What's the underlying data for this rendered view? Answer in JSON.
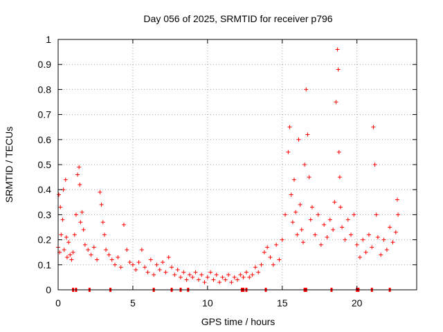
{
  "chart_data": {
    "type": "scatter",
    "title": "Day 056 of 2025, SRMTID for receiver p796",
    "xlabel": "GPS time / hours",
    "ylabel": "SRMTID / TECUs",
    "xlim": [
      0,
      24
    ],
    "ylim": [
      0,
      1
    ],
    "x_ticks": [
      0,
      5,
      10,
      15,
      20
    ],
    "x_tick_labels": [
      "0",
      "5",
      "10",
      "15",
      "20"
    ],
    "y_ticks": [
      0,
      0.1,
      0.2,
      0.3,
      0.4,
      0.5,
      0.6,
      0.7,
      0.8,
      0.9,
      1
    ],
    "y_tick_labels": [
      "0",
      "0.1",
      "0.2",
      "0.3",
      "0.4",
      "0.5",
      "0.6",
      "0.7",
      "0.8",
      "0.9",
      "1"
    ],
    "grid": true,
    "marker": "+",
    "color": "#ff0000",
    "series": [
      {
        "name": "SRMTID",
        "points": [
          [
            0.0,
            0.17
          ],
          [
            0.05,
            0.38
          ],
          [
            0.1,
            0.15
          ],
          [
            0.15,
            0.33
          ],
          [
            0.2,
            0.22
          ],
          [
            0.3,
            0.28
          ],
          [
            0.35,
            0.4
          ],
          [
            0.4,
            0.16
          ],
          [
            0.5,
            0.44
          ],
          [
            0.55,
            0.21
          ],
          [
            0.6,
            0.13
          ],
          [
            0.7,
            0.19
          ],
          [
            0.8,
            0.14
          ],
          [
            0.9,
            0.12
          ],
          [
            1.0,
            0.15
          ],
          [
            1.1,
            0.22
          ],
          [
            1.2,
            0.3
          ],
          [
            1.3,
            0.46
          ],
          [
            1.4,
            0.49
          ],
          [
            1.45,
            0.42
          ],
          [
            1.5,
            0.27
          ],
          [
            1.6,
            0.31
          ],
          [
            1.7,
            0.24
          ],
          [
            1.8,
            0.18
          ],
          [
            2.0,
            0.16
          ],
          [
            2.2,
            0.14
          ],
          [
            2.4,
            0.17
          ],
          [
            2.6,
            0.12
          ],
          [
            2.8,
            0.39
          ],
          [
            2.9,
            0.34
          ],
          [
            3.0,
            0.27
          ],
          [
            3.1,
            0.22
          ],
          [
            3.2,
            0.16
          ],
          [
            3.4,
            0.14
          ],
          [
            3.6,
            0.12
          ],
          [
            3.8,
            0.1
          ],
          [
            4.0,
            0.13
          ],
          [
            4.2,
            0.09
          ],
          [
            4.4,
            0.26
          ],
          [
            4.6,
            0.16
          ],
          [
            4.8,
            0.11
          ],
          [
            5.0,
            0.1
          ],
          [
            5.2,
            0.08
          ],
          [
            5.4,
            0.11
          ],
          [
            5.6,
            0.16
          ],
          [
            5.8,
            0.09
          ],
          [
            6.0,
            0.07
          ],
          [
            6.2,
            0.12
          ],
          [
            6.4,
            0.06
          ],
          [
            6.6,
            0.1
          ],
          [
            6.8,
            0.08
          ],
          [
            7.0,
            0.11
          ],
          [
            7.2,
            0.07
          ],
          [
            7.4,
            0.13
          ],
          [
            7.6,
            0.09
          ],
          [
            7.8,
            0.06
          ],
          [
            8.0,
            0.08
          ],
          [
            8.2,
            0.05
          ],
          [
            8.4,
            0.07
          ],
          [
            8.6,
            0.04
          ],
          [
            8.8,
            0.06
          ],
          [
            9.0,
            0.05
          ],
          [
            9.2,
            0.07
          ],
          [
            9.4,
            0.04
          ],
          [
            9.6,
            0.06
          ],
          [
            9.8,
            0.03
          ],
          [
            10.0,
            0.05
          ],
          [
            10.2,
            0.07
          ],
          [
            10.4,
            0.04
          ],
          [
            10.6,
            0.06
          ],
          [
            10.8,
            0.03
          ],
          [
            11.0,
            0.05
          ],
          [
            11.2,
            0.04
          ],
          [
            11.4,
            0.06
          ],
          [
            11.6,
            0.03
          ],
          [
            11.8,
            0.05
          ],
          [
            12.0,
            0.04
          ],
          [
            12.2,
            0.06
          ],
          [
            12.4,
            0.05
          ],
          [
            12.6,
            0.07
          ],
          [
            12.8,
            0.05
          ],
          [
            13.0,
            0.06
          ],
          [
            13.2,
            0.09
          ],
          [
            13.4,
            0.07
          ],
          [
            13.6,
            0.1
          ],
          [
            13.8,
            0.15
          ],
          [
            14.0,
            0.17
          ],
          [
            14.2,
            0.13
          ],
          [
            14.4,
            0.1
          ],
          [
            14.6,
            0.18
          ],
          [
            14.8,
            0.12
          ],
          [
            15.0,
            0.2
          ],
          [
            15.2,
            0.3
          ],
          [
            15.4,
            0.55
          ],
          [
            15.5,
            0.65
          ],
          [
            15.6,
            0.38
          ],
          [
            15.7,
            0.27
          ],
          [
            15.8,
            0.44
          ],
          [
            15.9,
            0.31
          ],
          [
            16.0,
            0.22
          ],
          [
            16.1,
            0.6
          ],
          [
            16.2,
            0.34
          ],
          [
            16.3,
            0.24
          ],
          [
            16.4,
            0.19
          ],
          [
            16.5,
            0.5
          ],
          [
            16.6,
            0.8
          ],
          [
            16.7,
            0.62
          ],
          [
            16.8,
            0.45
          ],
          [
            16.9,
            0.28
          ],
          [
            17.0,
            0.33
          ],
          [
            17.2,
            0.22
          ],
          [
            17.4,
            0.3
          ],
          [
            17.6,
            0.18
          ],
          [
            17.8,
            0.26
          ],
          [
            18.0,
            0.21
          ],
          [
            18.2,
            0.28
          ],
          [
            18.4,
            0.24
          ],
          [
            18.5,
            0.35
          ],
          [
            18.6,
            0.75
          ],
          [
            18.7,
            0.96
          ],
          [
            18.75,
            0.88
          ],
          [
            18.8,
            0.55
          ],
          [
            18.85,
            0.45
          ],
          [
            18.9,
            0.33
          ],
          [
            19.0,
            0.25
          ],
          [
            19.2,
            0.2
          ],
          [
            19.4,
            0.28
          ],
          [
            19.6,
            0.22
          ],
          [
            19.8,
            0.3
          ],
          [
            20.0,
            0.18
          ],
          [
            20.2,
            0.13
          ],
          [
            20.4,
            0.2
          ],
          [
            20.6,
            0.15
          ],
          [
            20.8,
            0.22
          ],
          [
            21.0,
            0.17
          ],
          [
            21.1,
            0.65
          ],
          [
            21.2,
            0.5
          ],
          [
            21.3,
            0.3
          ],
          [
            21.4,
            0.21
          ],
          [
            21.6,
            0.14
          ],
          [
            21.8,
            0.2
          ],
          [
            22.0,
            0.16
          ],
          [
            22.2,
            0.25
          ],
          [
            22.4,
            0.19
          ],
          [
            22.6,
            0.23
          ],
          [
            22.7,
            0.36
          ],
          [
            22.75,
            0.3
          ]
        ]
      }
    ],
    "missing_data_x": [
      1.0,
      1.2,
      2.1,
      3.5,
      6.4,
      7.6,
      8.2,
      8.7,
      12.3,
      12.4,
      12.6,
      13.9,
      16.5,
      16.6,
      18.3,
      20.0,
      20.1,
      21.0,
      22.2
    ]
  }
}
